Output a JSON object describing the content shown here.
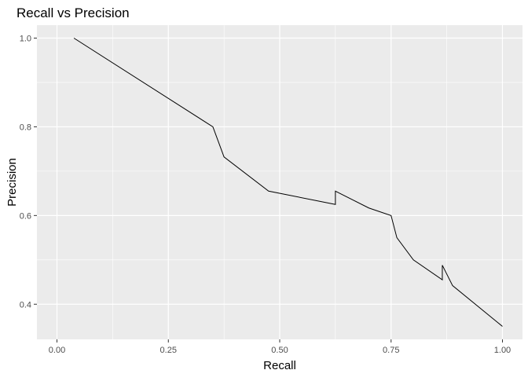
{
  "chart_data": {
    "type": "line",
    "title": "Recall vs Precision",
    "xlabel": "Recall",
    "ylabel": "Precision",
    "xlim": [
      0.0,
      1.0
    ],
    "ylim": [
      0.35,
      1.0
    ],
    "x_ticks": [
      0.0,
      0.25,
      0.5,
      0.75,
      1.0
    ],
    "x_tick_labels": [
      "0.00",
      "0.25",
      "0.50",
      "0.75",
      "1.00"
    ],
    "y_ticks": [
      0.4,
      0.6,
      0.8,
      1.0
    ],
    "y_tick_labels": [
      "0.4",
      "0.6",
      "0.8",
      "1.0"
    ],
    "grid": true,
    "legend": "none",
    "colors": {
      "panel_background": "#EBEBEB",
      "grid": "#FFFFFF",
      "line": "#000000",
      "tick_text": "#4D4D4D",
      "label_text": "#000000"
    },
    "series": [
      {
        "x": [
          0.038,
          0.35,
          0.375,
          0.475,
          0.625,
          0.625,
          0.7,
          0.75,
          0.763,
          0.8,
          0.865,
          0.865,
          0.888,
          1.0
        ],
        "y": [
          1.0,
          0.8,
          0.732,
          0.655,
          0.625,
          0.655,
          0.617,
          0.6,
          0.55,
          0.5,
          0.455,
          0.488,
          0.442,
          0.35
        ]
      }
    ]
  }
}
